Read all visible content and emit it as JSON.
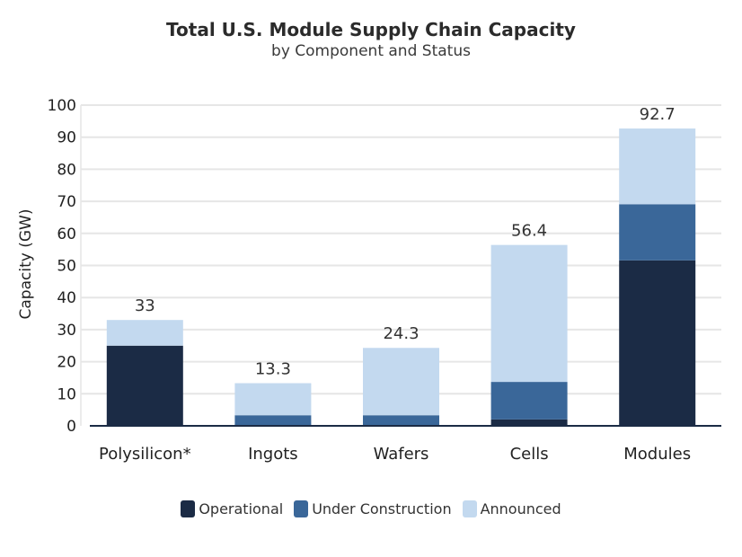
{
  "chart_data": {
    "type": "bar",
    "stacked": true,
    "title": "Total U.S. Module Supply Chain Capacity",
    "subtitle": "by Component and Status",
    "xlabel": "",
    "ylabel": "Capacity (GW)",
    "ylim": [
      0,
      100
    ],
    "yticks": [
      0,
      10,
      20,
      30,
      40,
      50,
      60,
      70,
      80,
      90,
      100
    ],
    "grid": true,
    "legend_position": "bottom",
    "categories": [
      "Polysilicon*",
      "Ingots",
      "Wafers",
      "Cells",
      "Modules"
    ],
    "series": [
      {
        "name": "Operational",
        "color": "#1b2b45",
        "values": [
          25,
          0,
          0,
          2,
          51.6
        ]
      },
      {
        "name": "Under Construction",
        "color": "#3a6799",
        "values": [
          0,
          3.3,
          3.3,
          11.7,
          17.5
        ]
      },
      {
        "name": "Announced",
        "color": "#c3d9ef",
        "values": [
          8,
          10,
          21,
          42.7,
          23.6
        ]
      }
    ],
    "totals": [
      "33",
      "13.3",
      "24.3",
      "56.4",
      "92.7"
    ]
  }
}
